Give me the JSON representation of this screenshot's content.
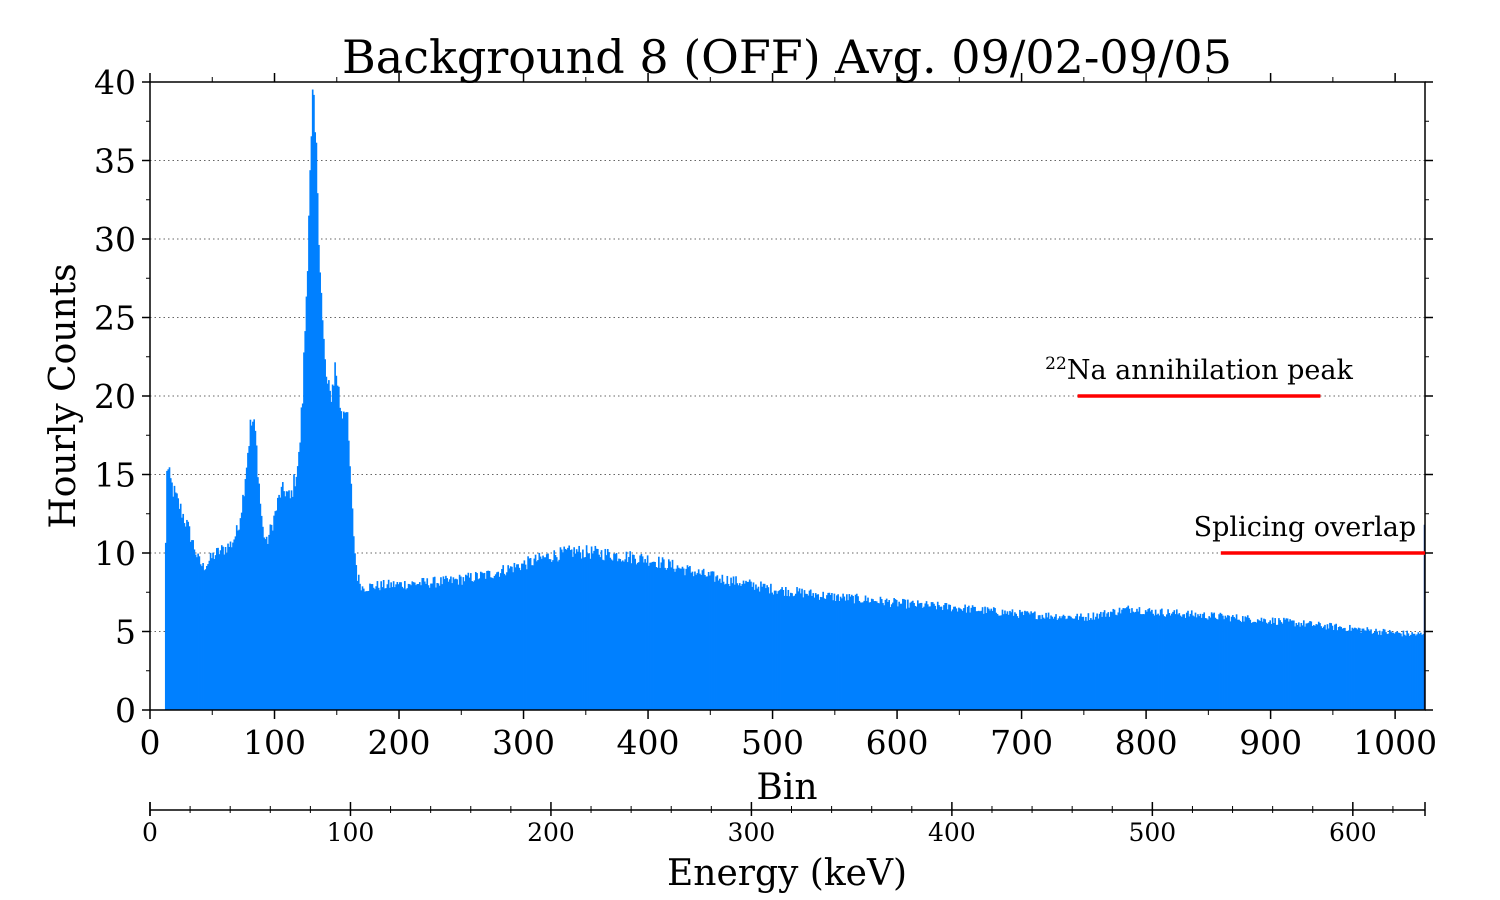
{
  "chart_data": {
    "type": "bar",
    "title": "Background 8 (OFF) Avg. 09/02-09/05",
    "xlabel": "Bin",
    "ylabel": "Hourly Counts",
    "x2label": "Energy (keV)",
    "xlim": [
      0,
      1024
    ],
    "ylim": [
      0,
      40
    ],
    "x2lim": [
      0,
      636
    ],
    "xticks": [
      "0",
      "100",
      "200",
      "300",
      "400",
      "500",
      "600",
      "700",
      "800",
      "900",
      "1000"
    ],
    "yticks": [
      "0",
      "5",
      "10",
      "15",
      "20",
      "25",
      "30",
      "35",
      "40"
    ],
    "x2ticks": [
      "0",
      "100",
      "200",
      "300",
      "400",
      "500",
      "600"
    ],
    "grid": "horizontal-dotted",
    "bar_color": "#0080ff",
    "series": [
      {
        "x": [
          12,
          13,
          15,
          18,
          22,
          26,
          30,
          34,
          38,
          42,
          46,
          50,
          55,
          60,
          65,
          70,
          74,
          78,
          80,
          82,
          84,
          86,
          88,
          90,
          93,
          96,
          100,
          104,
          108,
          112,
          116,
          119,
          122,
          125,
          127,
          129,
          130,
          131,
          132,
          134,
          136,
          138,
          140,
          142,
          144,
          146,
          148,
          150,
          152,
          154,
          156,
          158,
          160,
          162,
          164,
          166,
          170,
          180,
          200,
          240,
          270,
          300,
          320,
          340,
          360,
          380,
          400,
          450,
          500,
          550,
          580,
          600,
          650,
          700,
          750,
          790,
          800,
          850,
          900,
          950,
          1000,
          1020,
          1023
        ],
        "y": [
          10.5,
          15.5,
          14.8,
          14.0,
          13.2,
          12.4,
          11.6,
          10.6,
          9.6,
          9.1,
          9.4,
          9.8,
          10.1,
          10.3,
          10.6,
          11.5,
          13.5,
          16.5,
          18.0,
          18.3,
          17.6,
          15.5,
          13.2,
          11.5,
          10.6,
          11.4,
          12.5,
          13.8,
          14.0,
          13.4,
          14.8,
          16.0,
          20.0,
          26.5,
          32.0,
          35.5,
          38.5,
          37.5,
          36.5,
          33.5,
          28.5,
          24.5,
          22.0,
          20.5,
          20.0,
          20.6,
          21.8,
          21.0,
          19.5,
          19.0,
          19.6,
          18.2,
          15.5,
          12.5,
          10.0,
          8.5,
          7.8,
          7.9,
          8.0,
          8.2,
          8.6,
          9.3,
          9.8,
          10.1,
          10.0,
          9.8,
          9.6,
          8.5,
          7.7,
          7.2,
          7.0,
          6.8,
          6.5,
          6.1,
          5.9,
          6.5,
          6.3,
          6.0,
          5.7,
          5.3,
          4.9,
          4.8,
          4.8
        ]
      }
    ],
    "annotations": [
      {
        "sup": "22",
        "text": "Na annihilation peak",
        "x_range": [
          745,
          940
        ],
        "y": 20,
        "color": "#ff0000"
      },
      {
        "text": "Splicing overlap",
        "x_range": [
          860,
          1024
        ],
        "y": 10,
        "color": "#ff0000"
      }
    ]
  }
}
